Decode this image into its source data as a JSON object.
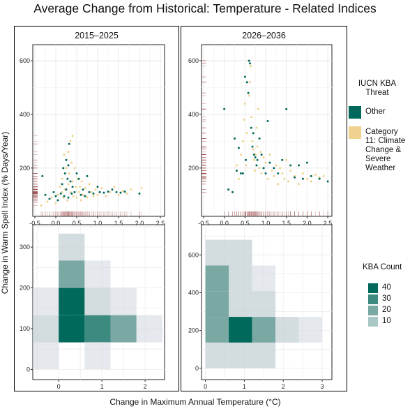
{
  "title": "Average Change from Historical: Temperature - Related Indices",
  "ylabel": "Change in Warm Spell Index (% Days/Year)",
  "xlabel": "Change in Maximum Annual Temperature (°C)",
  "legend": {
    "title": "IUCN KBA Threat",
    "items": [
      {
        "label": "Other",
        "color": "#00695c"
      },
      {
        "label": "Category 11: Climate Change & Severe Weather",
        "color": "#f0d28f"
      }
    ]
  },
  "count_legend": {
    "title": "KBA Count",
    "items": [
      {
        "label": "40",
        "color": "#00695c"
      },
      {
        "label": "30",
        "color": "#3d8a80"
      },
      {
        "label": "20",
        "color": "#7aa9a4"
      },
      {
        "label": "10",
        "color": "#a9c7c4"
      }
    ]
  },
  "panels": [
    {
      "label": "2015–2025"
    },
    {
      "label": "2026–2036"
    }
  ],
  "chart_data": [
    {
      "type": "scatter",
      "panel": "2015–2025",
      "xlim": [
        -0.55,
        2.6
      ],
      "ylim": [
        20,
        660
      ],
      "xticks": [
        "-0.5",
        "0.0",
        "0.5",
        "1.0",
        "1.5",
        "2.0",
        "2.5"
      ],
      "yticks": [
        "200",
        "400",
        "600"
      ],
      "grid": true,
      "series": [
        {
          "name": "Other",
          "points": [
            [
              -0.32,
              170
            ],
            [
              -0.25,
              100
            ],
            [
              -0.15,
              85
            ],
            [
              -0.05,
              110
            ],
            [
              0.0,
              95
            ],
            [
              0.05,
              80
            ],
            [
              0.12,
              105
            ],
            [
              0.15,
              140
            ],
            [
              0.18,
              200
            ],
            [
              0.2,
              95
            ],
            [
              0.22,
              180
            ],
            [
              0.25,
              230
            ],
            [
              0.25,
              120
            ],
            [
              0.28,
              160
            ],
            [
              0.3,
              210
            ],
            [
              0.3,
              90
            ],
            [
              0.32,
              290
            ],
            [
              0.35,
              150
            ],
            [
              0.38,
              105
            ],
            [
              0.4,
              130
            ],
            [
              0.45,
              110
            ],
            [
              0.5,
              180
            ],
            [
              0.55,
              160
            ],
            [
              0.6,
              100
            ],
            [
              0.65,
              120
            ],
            [
              0.7,
              95
            ],
            [
              0.75,
              170
            ],
            [
              0.8,
              110
            ],
            [
              0.9,
              105
            ],
            [
              1.0,
              130
            ],
            [
              1.05,
              110
            ],
            [
              1.15,
              108
            ],
            [
              1.25,
              112
            ],
            [
              1.35,
              120
            ],
            [
              1.45,
              110
            ],
            [
              1.55,
              108
            ],
            [
              1.65,
              112
            ],
            [
              2.0,
              105
            ]
          ]
        },
        {
          "name": "Category 11: Climate Change & Severe Weather",
          "points": [
            [
              -0.35,
              60
            ],
            [
              -0.2,
              75
            ],
            [
              -0.1,
              90
            ],
            [
              0.0,
              70
            ],
            [
              0.05,
              100
            ],
            [
              0.1,
              130
            ],
            [
              0.15,
              110
            ],
            [
              0.15,
              160
            ],
            [
              0.18,
              90
            ],
            [
              0.2,
              250
            ],
            [
              0.22,
              120
            ],
            [
              0.25,
              200
            ],
            [
              0.28,
              80
            ],
            [
              0.3,
              140
            ],
            [
              0.3,
              260
            ],
            [
              0.32,
              180
            ],
            [
              0.35,
              110
            ],
            [
              0.35,
              300
            ],
            [
              0.38,
              220
            ],
            [
              0.4,
              320
            ],
            [
              0.4,
              150
            ],
            [
              0.42,
              95
            ],
            [
              0.45,
              200
            ],
            [
              0.48,
              130
            ],
            [
              0.5,
              90
            ],
            [
              0.52,
              160
            ],
            [
              0.55,
              110
            ],
            [
              0.58,
              130
            ],
            [
              0.6,
              80
            ],
            [
              0.62,
              150
            ],
            [
              0.65,
              100
            ],
            [
              0.7,
              125
            ],
            [
              0.75,
              90
            ],
            [
              0.8,
              140
            ],
            [
              0.85,
              110
            ],
            [
              0.9,
              95
            ],
            [
              0.95,
              120
            ],
            [
              1.0,
              100
            ],
            [
              1.1,
              125
            ],
            [
              1.2,
              95
            ],
            [
              1.3,
              110
            ],
            [
              1.4,
              130
            ],
            [
              1.5,
              100
            ],
            [
              1.6,
              115
            ],
            [
              1.7,
              105
            ],
            [
              1.8,
              120
            ],
            [
              2.05,
              125
            ]
          ]
        }
      ]
    },
    {
      "type": "scatter",
      "panel": "2026–2036",
      "xlim": [
        -0.55,
        2.6
      ],
      "ylim": [
        20,
        660
      ],
      "xticks": [
        "-0.5",
        "0.0",
        "0.5",
        "1.0",
        "1.5",
        "2.0",
        "2.5"
      ],
      "yticks": [
        "200",
        "400",
        "600"
      ],
      "grid": true,
      "series": [
        {
          "name": "Other",
          "points": [
            [
              0.0,
              420
            ],
            [
              0.1,
              120
            ],
            [
              0.2,
              110
            ],
            [
              0.25,
              310
            ],
            [
              0.3,
              190
            ],
            [
              0.35,
              275
            ],
            [
              0.4,
              180
            ],
            [
              0.45,
              180
            ],
            [
              0.5,
              540
            ],
            [
              0.52,
              230
            ],
            [
              0.55,
              520
            ],
            [
              0.58,
              480
            ],
            [
              0.6,
              600
            ],
            [
              0.62,
              590
            ],
            [
              0.65,
              350
            ],
            [
              0.68,
              280
            ],
            [
              0.7,
              330
            ],
            [
              0.72,
              250
            ],
            [
              0.75,
              240
            ],
            [
              0.78,
              210
            ],
            [
              0.8,
              230
            ],
            [
              0.85,
              310
            ],
            [
              0.9,
              250
            ],
            [
              0.95,
              200
            ],
            [
              1.0,
              180
            ],
            [
              1.05,
              375
            ],
            [
              1.1,
              220
            ],
            [
              1.2,
              200
            ],
            [
              1.3,
              180
            ],
            [
              1.4,
              230
            ],
            [
              1.5,
              420
            ],
            [
              1.6,
              210
            ],
            [
              1.7,
              165
            ],
            [
              1.8,
              210
            ],
            [
              1.9,
              160
            ],
            [
              2.0,
              220
            ],
            [
              2.1,
              170
            ],
            [
              2.3,
              160
            ],
            [
              2.5,
              150
            ]
          ]
        },
        {
          "name": "Category 11: Climate Change & Severe Weather",
          "points": [
            [
              0.3,
              210
            ],
            [
              0.35,
              160
            ],
            [
              0.4,
              250
            ],
            [
              0.45,
              300
            ],
            [
              0.48,
              380
            ],
            [
              0.5,
              440
            ],
            [
              0.52,
              210
            ],
            [
              0.55,
              330
            ],
            [
              0.58,
              600
            ],
            [
              0.6,
              470
            ],
            [
              0.62,
              520
            ],
            [
              0.64,
              580
            ],
            [
              0.66,
              390
            ],
            [
              0.68,
              300
            ],
            [
              0.7,
              270
            ],
            [
              0.72,
              230
            ],
            [
              0.74,
              190
            ],
            [
              0.76,
              250
            ],
            [
              0.78,
              350
            ],
            [
              0.8,
              280
            ],
            [
              0.82,
              420
            ],
            [
              0.85,
              200
            ],
            [
              0.88,
              260
            ],
            [
              0.9,
              180
            ],
            [
              0.95,
              240
            ],
            [
              1.0,
              220
            ],
            [
              1.05,
              160
            ],
            [
              1.1,
              250
            ],
            [
              1.15,
              190
            ],
            [
              1.2,
              170
            ],
            [
              1.25,
              210
            ],
            [
              1.3,
              140
            ],
            [
              1.35,
              200
            ],
            [
              1.4,
              180
            ],
            [
              1.45,
              160
            ],
            [
              1.5,
              230
            ],
            [
              1.55,
              150
            ],
            [
              1.6,
              190
            ],
            [
              1.7,
              170
            ],
            [
              1.8,
              140
            ],
            [
              1.9,
              180
            ],
            [
              2.0,
              160
            ],
            [
              2.1,
              150
            ],
            [
              2.2,
              175
            ],
            [
              2.3,
              165
            ],
            [
              2.4,
              170
            ]
          ]
        }
      ]
    },
    {
      "type": "heatmap",
      "panel": "2015–2025",
      "xlim": [
        -0.6,
        2.45
      ],
      "ylim": [
        -25,
        355
      ],
      "xticks": [
        "0",
        "1",
        "2"
      ],
      "yticks": [
        "0",
        "100",
        "200",
        "300"
      ],
      "grid": true,
      "binwidth": [
        0.6,
        66.67
      ],
      "cells": [
        {
          "x": 0.0,
          "y": 333,
          "count": 10
        },
        {
          "x": 0.0,
          "y": 267,
          "count": 20
        },
        {
          "x": 0.6,
          "y": 267,
          "count": 5
        },
        {
          "x": -0.6,
          "y": 200,
          "count": 5
        },
        {
          "x": 0.0,
          "y": 200,
          "count": 45
        },
        {
          "x": 0.6,
          "y": 200,
          "count": 10
        },
        {
          "x": 1.2,
          "y": 200,
          "count": 5
        },
        {
          "x": -0.6,
          "y": 133,
          "count": 10
        },
        {
          "x": 0.0,
          "y": 133,
          "count": 45
        },
        {
          "x": 0.6,
          "y": 133,
          "count": 30
        },
        {
          "x": 1.2,
          "y": 133,
          "count": 20
        },
        {
          "x": 1.8,
          "y": 133,
          "count": 5
        },
        {
          "x": -0.6,
          "y": 67,
          "count": 5
        },
        {
          "x": 0.6,
          "y": 67,
          "count": 5
        }
      ]
    },
    {
      "type": "heatmap",
      "panel": "2026–2036",
      "xlim": [
        -0.1,
        3.25
      ],
      "ylim": [
        -60,
        760
      ],
      "xticks": [
        "0",
        "1",
        "2",
        "3"
      ],
      "yticks": [
        "0",
        "200",
        "400",
        "600"
      ],
      "grid": true,
      "binwidth": [
        0.6,
        136
      ],
      "cells": [
        {
          "x": 0.0,
          "y": 680,
          "count": 10
        },
        {
          "x": 0.6,
          "y": 680,
          "count": 15
        },
        {
          "x": 0.0,
          "y": 544,
          "count": 25
        },
        {
          "x": 0.6,
          "y": 544,
          "count": 10
        },
        {
          "x": 1.2,
          "y": 544,
          "count": 5
        },
        {
          "x": 0.0,
          "y": 408,
          "count": 20
        },
        {
          "x": 0.6,
          "y": 408,
          "count": 10
        },
        {
          "x": 1.2,
          "y": 408,
          "count": 10
        },
        {
          "x": 0.0,
          "y": 272,
          "count": 20
        },
        {
          "x": 0.6,
          "y": 272,
          "count": 45
        },
        {
          "x": 1.2,
          "y": 272,
          "count": 20
        },
        {
          "x": 1.8,
          "y": 272,
          "count": 15
        },
        {
          "x": 2.4,
          "y": 272,
          "count": 5
        },
        {
          "x": 0.0,
          "y": 136,
          "count": 10
        },
        {
          "x": 0.6,
          "y": 136,
          "count": 10
        },
        {
          "x": 1.2,
          "y": 136,
          "count": 10
        }
      ]
    }
  ]
}
